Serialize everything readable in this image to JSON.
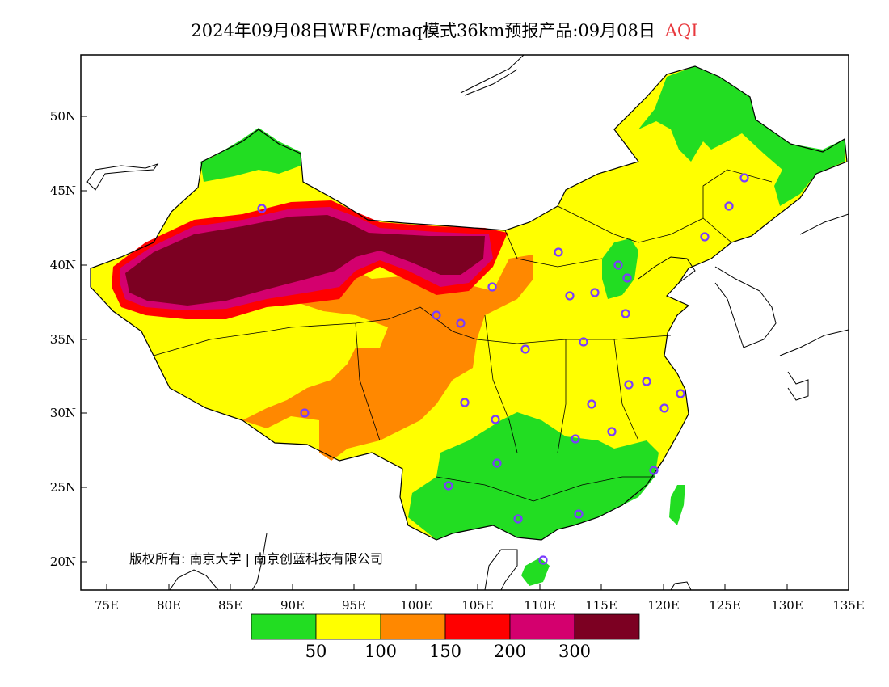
{
  "title": {
    "text": "2024年09月08日WRF/cmaq模式36km预报产品:09月08日",
    "variable": "AQI",
    "variable_color": "#e8383d"
  },
  "x_ticks": [
    "75E",
    "80E",
    "85E",
    "90E",
    "95E",
    "100E",
    "105E",
    "110E",
    "115E",
    "120E",
    "125E",
    "130E",
    "135E"
  ],
  "y_ticks": [
    "20N",
    "25N",
    "30N",
    "35N",
    "40N",
    "45N",
    "50N"
  ],
  "copyright": "版权所有: 南京大学 | 南京创蓝科技有限公司",
  "colorbar": {
    "colors": [
      "#22dd22",
      "#ffff00",
      "#ff8800",
      "#ff0000",
      "#d4006e",
      "#7c0022"
    ],
    "labels": [
      "50",
      "100",
      "150",
      "200",
      "300"
    ]
  },
  "stations_marker_color": "#7a3cff"
}
